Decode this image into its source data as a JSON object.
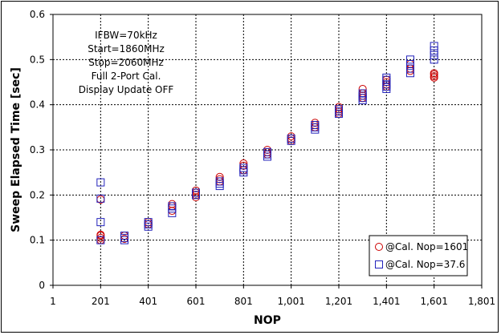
{
  "chart_data": {
    "type": "scatter",
    "title": "",
    "xlabel": "NOP",
    "ylabel": "Sweep Elapsed Time [sec]",
    "xlim": [
      1,
      1801
    ],
    "ylim": [
      0,
      0.6
    ],
    "x_ticks": [
      1,
      201,
      401,
      601,
      801,
      1001,
      1201,
      1401,
      1601,
      1801
    ],
    "x_tick_labels": [
      "1",
      "201",
      "401",
      "601",
      "801",
      "1,001",
      "1,201",
      "1,401",
      "1,601",
      "1,801"
    ],
    "y_ticks": [
      0,
      0.1,
      0.2,
      0.3,
      0.4,
      0.5,
      0.6
    ],
    "y_tick_labels": [
      "0",
      "0.1",
      "0.2",
      "0.3",
      "0.4",
      "0.5",
      "0.6"
    ],
    "grid": true,
    "legend_position": "bottom-right",
    "annotations": [
      "IFBW=70kHz",
      "Start=1860MHz",
      "Stop=2060MHz",
      "Full 2-Port Cal.",
      "Display Update OFF"
    ],
    "series": [
      {
        "name": "@Cal. Nop=1601",
        "marker": "circle",
        "color": "#cc0000",
        "points": [
          [
            201,
            0.1
          ],
          [
            201,
            0.105
          ],
          [
            201,
            0.11
          ],
          [
            201,
            0.112
          ],
          [
            201,
            0.19
          ],
          [
            301,
            0.103
          ],
          [
            301,
            0.11
          ],
          [
            401,
            0.135
          ],
          [
            401,
            0.14
          ],
          [
            501,
            0.165
          ],
          [
            501,
            0.175
          ],
          [
            501,
            0.18
          ],
          [
            601,
            0.195
          ],
          [
            601,
            0.2
          ],
          [
            601,
            0.205
          ],
          [
            601,
            0.21
          ],
          [
            701,
            0.23
          ],
          [
            701,
            0.235
          ],
          [
            701,
            0.24
          ],
          [
            801,
            0.255
          ],
          [
            801,
            0.265
          ],
          [
            801,
            0.27
          ],
          [
            901,
            0.29
          ],
          [
            901,
            0.295
          ],
          [
            901,
            0.3
          ],
          [
            1001,
            0.32
          ],
          [
            1001,
            0.325
          ],
          [
            1001,
            0.33
          ],
          [
            1101,
            0.35
          ],
          [
            1101,
            0.355
          ],
          [
            1101,
            0.36
          ],
          [
            1201,
            0.38
          ],
          [
            1201,
            0.385
          ],
          [
            1201,
            0.39
          ],
          [
            1201,
            0.395
          ],
          [
            1301,
            0.415
          ],
          [
            1301,
            0.42
          ],
          [
            1301,
            0.425
          ],
          [
            1301,
            0.435
          ],
          [
            1401,
            0.44
          ],
          [
            1401,
            0.445
          ],
          [
            1401,
            0.45
          ],
          [
            1401,
            0.455
          ],
          [
            1501,
            0.475
          ],
          [
            1501,
            0.48
          ],
          [
            1501,
            0.49
          ],
          [
            1601,
            0.46
          ],
          [
            1601,
            0.463
          ],
          [
            1601,
            0.467
          ],
          [
            1601,
            0.47
          ]
        ]
      },
      {
        "name": "@Cal. Nop=37.6",
        "marker": "square",
        "color": "#2222bb",
        "points": [
          [
            201,
            0.1
          ],
          [
            201,
            0.14
          ],
          [
            201,
            0.192
          ],
          [
            201,
            0.228
          ],
          [
            301,
            0.1
          ],
          [
            301,
            0.105
          ],
          [
            301,
            0.11
          ],
          [
            401,
            0.13
          ],
          [
            401,
            0.135
          ],
          [
            401,
            0.14
          ],
          [
            501,
            0.16
          ],
          [
            501,
            0.17
          ],
          [
            501,
            0.175
          ],
          [
            601,
            0.2
          ],
          [
            601,
            0.205
          ],
          [
            701,
            0.22
          ],
          [
            701,
            0.225
          ],
          [
            701,
            0.23
          ],
          [
            801,
            0.25
          ],
          [
            801,
            0.255
          ],
          [
            801,
            0.26
          ],
          [
            901,
            0.285
          ],
          [
            901,
            0.29
          ],
          [
            901,
            0.295
          ],
          [
            1001,
            0.32
          ],
          [
            1001,
            0.325
          ],
          [
            1101,
            0.345
          ],
          [
            1101,
            0.35
          ],
          [
            1101,
            0.355
          ],
          [
            1201,
            0.38
          ],
          [
            1201,
            0.385
          ],
          [
            1201,
            0.39
          ],
          [
            1301,
            0.41
          ],
          [
            1301,
            0.415
          ],
          [
            1301,
            0.42
          ],
          [
            1301,
            0.425
          ],
          [
            1401,
            0.435
          ],
          [
            1401,
            0.44
          ],
          [
            1401,
            0.445
          ],
          [
            1401,
            0.455
          ],
          [
            1401,
            0.46
          ],
          [
            1501,
            0.47
          ],
          [
            1501,
            0.48
          ],
          [
            1501,
            0.49
          ],
          [
            1501,
            0.5
          ],
          [
            1601,
            0.5
          ],
          [
            1601,
            0.51
          ],
          [
            1601,
            0.52
          ],
          [
            1601,
            0.53
          ]
        ]
      }
    ]
  }
}
